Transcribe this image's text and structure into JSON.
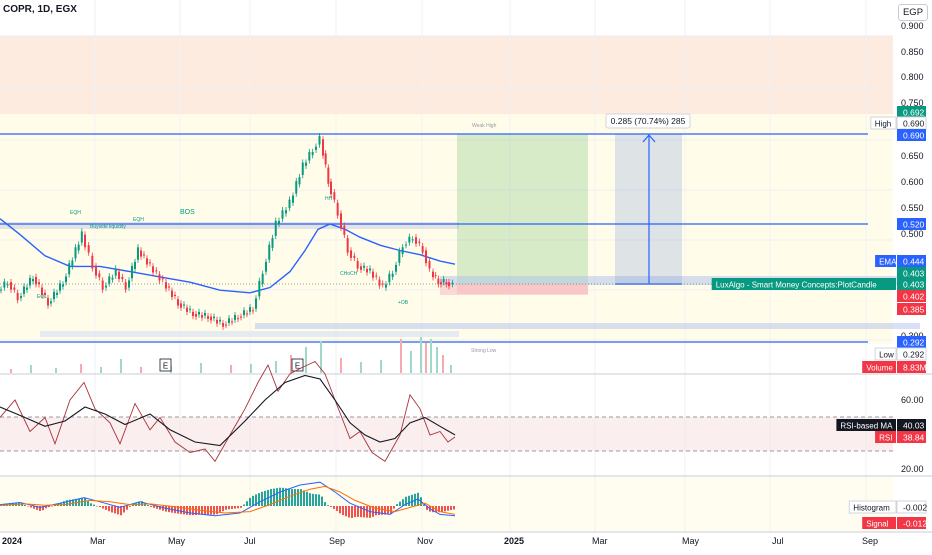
{
  "chart_data": {
    "type": "candlestick",
    "title": "COPR, 1D, EGX",
    "currency": "EGP",
    "measure_label": "0.285 (70.74%) 285",
    "x_labels": [
      "2024",
      "Mar",
      "May",
      "Jul",
      "Sep",
      "Nov",
      "2025",
      "Mar",
      "May",
      "Jul",
      "Sep"
    ],
    "y_ticks": [
      "0.900",
      "0.850",
      "0.800",
      "0.750",
      "0.650",
      "0.600",
      "0.550",
      "0.500",
      "0.450",
      "0.350",
      "0.300"
    ],
    "rsi_ticks": [
      "60.00",
      "20.00"
    ],
    "events": [
      "E",
      "E"
    ],
    "price_path": [
      [
        0,
        0.395
      ],
      [
        10,
        0.41
      ],
      [
        20,
        0.38
      ],
      [
        35,
        0.42
      ],
      [
        50,
        0.37
      ],
      [
        65,
        0.41
      ],
      [
        84,
        0.5
      ],
      [
        95,
        0.44
      ],
      [
        105,
        0.4
      ],
      [
        118,
        0.43
      ],
      [
        128,
        0.4
      ],
      [
        140,
        0.47
      ],
      [
        152,
        0.44
      ],
      [
        165,
        0.41
      ],
      [
        180,
        0.37
      ],
      [
        195,
        0.35
      ],
      [
        210,
        0.345
      ],
      [
        225,
        0.33
      ],
      [
        240,
        0.345
      ],
      [
        255,
        0.36
      ],
      [
        265,
        0.43
      ],
      [
        278,
        0.52
      ],
      [
        292,
        0.56
      ],
      [
        305,
        0.63
      ],
      [
        315,
        0.66
      ],
      [
        322,
        0.68
      ],
      [
        330,
        0.6
      ],
      [
        340,
        0.54
      ],
      [
        350,
        0.47
      ],
      [
        360,
        0.44
      ],
      [
        372,
        0.43
      ],
      [
        385,
        0.4
      ],
      [
        395,
        0.43
      ],
      [
        405,
        0.48
      ],
      [
        415,
        0.495
      ],
      [
        425,
        0.47
      ],
      [
        432,
        0.43
      ],
      [
        440,
        0.41
      ],
      [
        448,
        0.41
      ],
      [
        455,
        0.403
      ]
    ],
    "ema_path": [
      [
        0,
        0.53
      ],
      [
        20,
        0.5
      ],
      [
        45,
        0.46
      ],
      [
        70,
        0.44
      ],
      [
        100,
        0.44
      ],
      [
        130,
        0.43
      ],
      [
        160,
        0.42
      ],
      [
        190,
        0.41
      ],
      [
        220,
        0.395
      ],
      [
        250,
        0.39
      ],
      [
        270,
        0.4
      ],
      [
        290,
        0.43
      ],
      [
        305,
        0.47
      ],
      [
        318,
        0.51
      ],
      [
        330,
        0.52
      ],
      [
        345,
        0.51
      ],
      [
        360,
        0.495
      ],
      [
        380,
        0.48
      ],
      [
        400,
        0.47
      ],
      [
        420,
        0.462
      ],
      [
        440,
        0.45
      ],
      [
        455,
        0.444
      ]
    ],
    "volume": [
      [
        10,
        4
      ],
      [
        30,
        8
      ],
      [
        55,
        5
      ],
      [
        80,
        9
      ],
      [
        100,
        6
      ],
      [
        120,
        14
      ],
      [
        140,
        6
      ],
      [
        170,
        7
      ],
      [
        200,
        10
      ],
      [
        230,
        8
      ],
      [
        250,
        9
      ],
      [
        275,
        12
      ],
      [
        290,
        18
      ],
      [
        305,
        26
      ],
      [
        320,
        32
      ],
      [
        340,
        15
      ],
      [
        360,
        11
      ],
      [
        380,
        13
      ],
      [
        400,
        34
      ],
      [
        410,
        22
      ],
      [
        420,
        36
      ],
      [
        425,
        30
      ],
      [
        430,
        34
      ],
      [
        436,
        26
      ],
      [
        442,
        18
      ],
      [
        450,
        8
      ]
    ],
    "rsi": [
      [
        0,
        50
      ],
      [
        15,
        60
      ],
      [
        30,
        42
      ],
      [
        45,
        50
      ],
      [
        55,
        35
      ],
      [
        70,
        60
      ],
      [
        84,
        70
      ],
      [
        95,
        55
      ],
      [
        110,
        47
      ],
      [
        120,
        35
      ],
      [
        135,
        58
      ],
      [
        150,
        43
      ],
      [
        160,
        50
      ],
      [
        175,
        36
      ],
      [
        190,
        30
      ],
      [
        205,
        32
      ],
      [
        215,
        25
      ],
      [
        230,
        40
      ],
      [
        245,
        55
      ],
      [
        258,
        70
      ],
      [
        268,
        80
      ],
      [
        278,
        65
      ],
      [
        290,
        75
      ],
      [
        300,
        78
      ],
      [
        315,
        82
      ],
      [
        325,
        75
      ],
      [
        335,
        60
      ],
      [
        350,
        38
      ],
      [
        360,
        42
      ],
      [
        372,
        30
      ],
      [
        385,
        25
      ],
      [
        400,
        40
      ],
      [
        410,
        63
      ],
      [
        420,
        55
      ],
      [
        430,
        40
      ],
      [
        440,
        42
      ],
      [
        448,
        36
      ],
      [
        455,
        38.84
      ]
    ],
    "rsi_ma": [
      [
        0,
        56
      ],
      [
        25,
        50
      ],
      [
        45,
        45
      ],
      [
        65,
        48
      ],
      [
        85,
        56
      ],
      [
        105,
        52
      ],
      [
        125,
        46
      ],
      [
        150,
        52
      ],
      [
        170,
        43
      ],
      [
        195,
        36
      ],
      [
        220,
        34
      ],
      [
        245,
        48
      ],
      [
        265,
        60
      ],
      [
        285,
        70
      ],
      [
        305,
        74
      ],
      [
        320,
        72
      ],
      [
        335,
        60
      ],
      [
        350,
        47
      ],
      [
        365,
        40
      ],
      [
        380,
        36
      ],
      [
        395,
        38
      ],
      [
        410,
        47
      ],
      [
        425,
        50
      ],
      [
        440,
        45
      ],
      [
        455,
        40.03
      ]
    ],
    "macd": [
      [
        0,
        0.002
      ],
      [
        20,
        0.005
      ],
      [
        40,
        -0.002
      ],
      [
        60,
        0.004
      ],
      [
        84,
        0.012
      ],
      [
        100,
        0.006
      ],
      [
        120,
        -0.002
      ],
      [
        140,
        0.006
      ],
      [
        165,
        -0.003
      ],
      [
        190,
        -0.01
      ],
      [
        215,
        -0.014
      ],
      [
        240,
        -0.01
      ],
      [
        260,
        0.006
      ],
      [
        280,
        0.02
      ],
      [
        300,
        0.03
      ],
      [
        320,
        0.034
      ],
      [
        335,
        0.02
      ],
      [
        350,
        0.004
      ],
      [
        370,
        -0.008
      ],
      [
        390,
        -0.012
      ],
      [
        405,
        0.002
      ],
      [
        418,
        0.01
      ],
      [
        430,
        -0.004
      ],
      [
        440,
        -0.012
      ],
      [
        455,
        -0.014
      ]
    ],
    "signal": [
      [
        0,
        0.001
      ],
      [
        25,
        0.003
      ],
      [
        45,
        0.001
      ],
      [
        65,
        0.002
      ],
      [
        90,
        0.008
      ],
      [
        110,
        0.006
      ],
      [
        130,
        0.002
      ],
      [
        150,
        0.003
      ],
      [
        175,
        -0.001
      ],
      [
        200,
        -0.006
      ],
      [
        225,
        -0.01
      ],
      [
        250,
        -0.008
      ],
      [
        270,
        0.002
      ],
      [
        290,
        0.014
      ],
      [
        310,
        0.024
      ],
      [
        325,
        0.028
      ],
      [
        340,
        0.02
      ],
      [
        355,
        0.008
      ],
      [
        375,
        -0.003
      ],
      [
        395,
        -0.008
      ],
      [
        410,
        -0.002
      ],
      [
        425,
        0.004
      ],
      [
        440,
        -0.008
      ],
      [
        455,
        -0.012
      ]
    ],
    "axis_tags": [
      {
        "label": "",
        "value": "0.692",
        "color": "#089981"
      },
      {
        "label": "High",
        "value": "0.690",
        "color": "#ffffff"
      },
      {
        "label": "",
        "value": "0.690",
        "color": "#2962ff"
      },
      {
        "label": "",
        "value": "0.520",
        "color": "#2962ff"
      },
      {
        "label": "EMA",
        "value": "0.444",
        "color": "#2962ff"
      },
      {
        "label": "",
        "value": "0.403",
        "color": "#089981"
      },
      {
        "label": "LuxAlgo - Smart Money Concepts:PlotCandle",
        "value": "0.403",
        "color": "#089981"
      },
      {
        "label": "",
        "value": "0.402",
        "color": "#f23645"
      },
      {
        "label": "",
        "value": "0.385",
        "color": "#f23645"
      },
      {
        "label": "",
        "value": "0.292",
        "color": "#2962ff"
      },
      {
        "label": "Low",
        "value": "0.292",
        "color": "#ffffff"
      },
      {
        "label": "Volume",
        "value": "8.83M",
        "color": "#f23645"
      },
      {
        "label": "RSI-based MA",
        "value": "40.03",
        "color": "#131722"
      },
      {
        "label": "RSI",
        "value": "38.84",
        "color": "#f23645"
      },
      {
        "label": "Histogram",
        "value": "-0.002",
        "color": "#ffffff"
      },
      {
        "label": "Signal",
        "value": "-0.012",
        "color": "#f23645"
      }
    ],
    "smc_labels": [
      "EQH",
      "BOS",
      "Buyside liquidity",
      "EQH",
      "CHoCH",
      "EQL",
      "Weak High",
      "HH",
      "Strong Low",
      "+OB"
    ]
  }
}
